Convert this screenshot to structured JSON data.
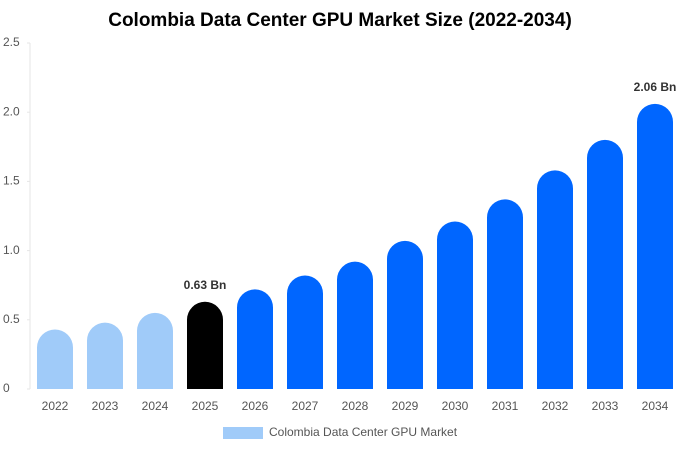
{
  "chart_data": {
    "type": "bar",
    "title": "Colombia Data Center GPU Market Size (2022-2034)",
    "categories": [
      "2022",
      "2023",
      "2024",
      "2025",
      "2026",
      "2027",
      "2028",
      "2029",
      "2030",
      "2031",
      "2032",
      "2033",
      "2034"
    ],
    "series": [
      {
        "name": "Colombia Data Center GPU Market",
        "color": "#a0cbf9",
        "values": [
          0.43,
          0.48,
          0.55,
          0.63,
          0.72,
          0.82,
          0.92,
          1.07,
          1.21,
          1.37,
          1.58,
          1.8,
          2.06
        ],
        "value_labels": [
          null,
          null,
          null,
          "0.63 Bn",
          null,
          null,
          null,
          null,
          null,
          null,
          null,
          null,
          "2.06 Bn"
        ],
        "colors": [
          "#a0cbf9",
          "#a0cbf9",
          "#a0cbf9",
          "#000000",
          "#0066ff",
          "#0066ff",
          "#0066ff",
          "#0066ff",
          "#0066ff",
          "#0066ff",
          "#0066ff",
          "#0066ff",
          "#0066ff"
        ]
      }
    ],
    "ylim": [
      0,
      2.5
    ],
    "yticks": [
      0,
      {
        "value": 0.5,
        "label": "0.5"
      },
      {
        "value": 1,
        "label": "1.0"
      },
      {
        "value": 1.5,
        "label": "1.5"
      },
      {
        "value": 2,
        "label": "2.0"
      },
      {
        "value": 2.5,
        "label": "2.5"
      }
    ],
    "grid": false
  }
}
